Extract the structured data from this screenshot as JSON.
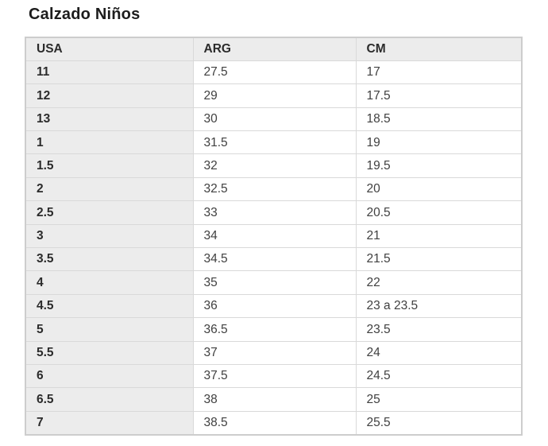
{
  "page": {
    "title": "Calzado Niños"
  },
  "colors": {
    "page_background": "#ffffff",
    "title_text": "#1c1c1c",
    "header_background": "#ececec",
    "first_column_background": "#ececec",
    "cell_background": "#ffffff",
    "bold_text": "#2b2b2b",
    "cell_text": "#404040",
    "border_inner": "#d9d9d9",
    "border_outer": "#cdcdcd"
  },
  "table": {
    "columns": [
      "USA",
      "ARG",
      "CM"
    ],
    "rows": [
      [
        "11",
        "27.5",
        "17"
      ],
      [
        "12",
        "29",
        "17.5"
      ],
      [
        "13",
        "30",
        "18.5"
      ],
      [
        "1",
        "31.5",
        "19"
      ],
      [
        "1.5",
        "32",
        "19.5"
      ],
      [
        "2",
        "32.5",
        "20"
      ],
      [
        "2.5",
        "33",
        "20.5"
      ],
      [
        "3",
        "34",
        "21"
      ],
      [
        "3.5",
        "34.5",
        "21.5"
      ],
      [
        "4",
        "35",
        "22"
      ],
      [
        "4.5",
        "36",
        "23 a 23.5"
      ],
      [
        "5",
        "36.5",
        "23.5"
      ],
      [
        "5.5",
        "37",
        "24"
      ],
      [
        "6",
        "37.5",
        "24.5"
      ],
      [
        "6.5",
        "38",
        "25"
      ],
      [
        "7",
        "38.5",
        "25.5"
      ]
    ]
  }
}
